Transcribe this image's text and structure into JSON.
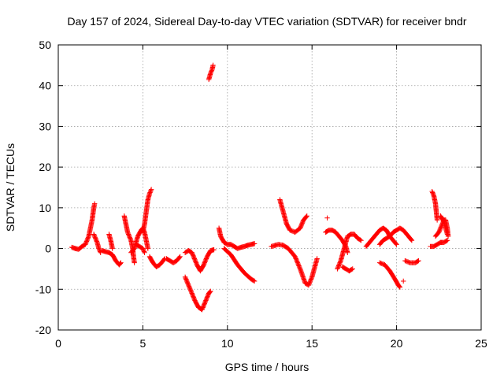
{
  "chart_data": {
    "type": "scatter",
    "title": "Day 157 of 2024, Sidereal Day-to-day VTEC variation (SDTVAR) for receiver bndr",
    "xlabel": "GPS time / hours",
    "ylabel": "SDTVAR / TECUs",
    "xlim": [
      0,
      25
    ],
    "ylim": [
      -20,
      50
    ],
    "xticks": [
      "0",
      "5",
      "10",
      "15",
      "20",
      "25"
    ],
    "yticks": [
      "-20",
      "-10",
      "0",
      "10",
      "20",
      "30",
      "40",
      "50"
    ],
    "grid": true,
    "legend": "none",
    "marker": "plus",
    "color": "#ff0000",
    "series": [
      {
        "name": "SDTVAR",
        "segments": [
          [
            [
              0.8,
              0.3
            ],
            [
              1.0,
              0.0
            ],
            [
              1.2,
              -0.2
            ],
            [
              1.4,
              0.5
            ],
            [
              1.6,
              1.0
            ],
            [
              1.8,
              3.0
            ],
            [
              2.0,
              7.0
            ],
            [
              2.1,
              10.0
            ],
            [
              2.15,
              11.0
            ]
          ],
          [
            [
              2.1,
              3.5
            ],
            [
              2.2,
              2.5
            ],
            [
              2.3,
              1.5
            ],
            [
              2.4,
              0.0
            ],
            [
              2.5,
              -1.0
            ]
          ],
          [
            [
              2.6,
              -0.5
            ],
            [
              2.8,
              -0.8
            ],
            [
              3.0,
              -1.0
            ],
            [
              3.2,
              -1.5
            ],
            [
              3.4,
              -3.0
            ],
            [
              3.6,
              -4.0
            ],
            [
              3.7,
              -3.5
            ]
          ],
          [
            [
              3.0,
              3.5
            ],
            [
              3.1,
              2.0
            ],
            [
              3.2,
              0.0
            ]
          ],
          [
            [
              3.9,
              8.0
            ],
            [
              4.0,
              6.0
            ],
            [
              4.1,
              4.0
            ],
            [
              4.2,
              3.0
            ],
            [
              4.3,
              2.0
            ],
            [
              4.4,
              0.0
            ],
            [
              4.45,
              -2.0
            ],
            [
              4.5,
              -3.5
            ]
          ],
          [
            [
              4.3,
              -1.0
            ],
            [
              4.5,
              0.0
            ],
            [
              4.7,
              3.0
            ],
            [
              4.9,
              4.5
            ],
            [
              5.0,
              5.0
            ],
            [
              5.1,
              4.0
            ],
            [
              5.2,
              2.0
            ],
            [
              5.3,
              0.0
            ]
          ],
          [
            [
              4.6,
              1.0
            ],
            [
              4.8,
              0.5
            ],
            [
              5.0,
              0.0
            ],
            [
              5.1,
              -1.0
            ]
          ],
          [
            [
              5.0,
              4.0
            ],
            [
              5.1,
              6.0
            ],
            [
              5.2,
              9.0
            ],
            [
              5.3,
              12.0
            ],
            [
              5.4,
              13.5
            ],
            [
              5.5,
              14.5
            ]
          ],
          [
            [
              5.4,
              -2.0
            ],
            [
              5.6,
              -3.5
            ],
            [
              5.8,
              -4.5
            ],
            [
              6.0,
              -4.0
            ],
            [
              6.2,
              -3.0
            ],
            [
              6.3,
              -2.5
            ]
          ],
          [
            [
              6.4,
              -2.5
            ],
            [
              6.6,
              -3.0
            ],
            [
              6.8,
              -3.5
            ],
            [
              7.0,
              -3.0
            ],
            [
              7.2,
              -2.0
            ]
          ],
          [
            [
              7.5,
              -1.0
            ],
            [
              7.7,
              -0.5
            ],
            [
              7.9,
              -1.0
            ],
            [
              8.0,
              -2.0
            ],
            [
              8.2,
              -4.0
            ],
            [
              8.4,
              -5.5
            ],
            [
              8.6,
              -4.0
            ],
            [
              8.8,
              -2.0
            ],
            [
              9.0,
              -0.5
            ],
            [
              9.2,
              -0.3
            ]
          ],
          [
            [
              7.5,
              -7.0
            ],
            [
              7.7,
              -9.0
            ],
            [
              7.9,
              -11.0
            ],
            [
              8.1,
              -13.0
            ],
            [
              8.3,
              -14.5
            ],
            [
              8.5,
              -15.0
            ],
            [
              8.7,
              -13.0
            ],
            [
              8.9,
              -11.0
            ],
            [
              9.0,
              -10.5
            ]
          ],
          [
            [
              8.9,
              41.5
            ],
            [
              9.0,
              43.0
            ],
            [
              9.1,
              44.0
            ],
            [
              9.15,
              45.0
            ]
          ],
          [
            [
              9.5,
              5.0
            ],
            [
              9.6,
              3.0
            ],
            [
              9.8,
              1.5
            ],
            [
              10.0,
              1.0
            ],
            [
              10.2,
              1.0
            ],
            [
              10.4,
              0.5
            ],
            [
              10.6,
              0.0
            ],
            [
              10.8,
              0.3
            ],
            [
              11.0,
              0.5
            ],
            [
              11.2,
              0.8
            ],
            [
              11.4,
              1.0
            ],
            [
              11.6,
              1.2
            ]
          ],
          [
            [
              9.8,
              0.0
            ],
            [
              10.2,
              -1.5
            ],
            [
              10.6,
              -4.0
            ],
            [
              11.0,
              -6.0
            ],
            [
              11.4,
              -7.5
            ],
            [
              11.6,
              -8.0
            ]
          ],
          [
            [
              12.6,
              0.5
            ],
            [
              13.0,
              1.0
            ],
            [
              13.3,
              0.8
            ],
            [
              13.6,
              0.0
            ],
            [
              14.0,
              -2.0
            ],
            [
              14.3,
              -5.0
            ],
            [
              14.6,
              -8.5
            ],
            [
              14.8,
              -9.0
            ],
            [
              15.0,
              -7.0
            ],
            [
              15.2,
              -4.0
            ],
            [
              15.3,
              -2.5
            ]
          ],
          [
            [
              13.1,
              12.0
            ],
            [
              13.3,
              9.0
            ],
            [
              13.5,
              6.0
            ],
            [
              13.7,
              4.5
            ],
            [
              14.0,
              4.0
            ],
            [
              14.3,
              5.0
            ],
            [
              14.5,
              7.0
            ],
            [
              14.7,
              8.0
            ]
          ],
          [
            [
              15.9,
              7.5
            ]
          ],
          [
            [
              15.8,
              4.0
            ],
            [
              16.0,
              4.5
            ],
            [
              16.2,
              4.5
            ],
            [
              16.4,
              4.0
            ],
            [
              16.6,
              3.0
            ],
            [
              16.8,
              2.0
            ],
            [
              17.0,
              0.5
            ],
            [
              17.1,
              -1.0
            ]
          ],
          [
            [
              16.5,
              -5.0
            ],
            [
              16.7,
              -3.0
            ],
            [
              16.9,
              0.0
            ],
            [
              17.1,
              3.0
            ],
            [
              17.3,
              3.5
            ],
            [
              17.5,
              3.5
            ],
            [
              17.7,
              2.5
            ],
            [
              17.9,
              2.0
            ]
          ],
          [
            [
              16.8,
              -4.5
            ],
            [
              17.0,
              -5.0
            ],
            [
              17.2,
              -5.5
            ],
            [
              17.4,
              -5.0
            ]
          ],
          [
            [
              18.2,
              0.5
            ],
            [
              18.4,
              1.5
            ],
            [
              18.6,
              2.5
            ],
            [
              18.8,
              3.5
            ],
            [
              19.0,
              4.5
            ],
            [
              19.2,
              5.0
            ],
            [
              19.4,
              4.5
            ],
            [
              19.6,
              3.0
            ],
            [
              19.8,
              2.0
            ],
            [
              20.0,
              1.0
            ]
          ],
          [
            [
              19.0,
              1.0
            ],
            [
              19.2,
              2.0
            ],
            [
              19.4,
              2.5
            ],
            [
              19.6,
              3.0
            ],
            [
              19.8,
              4.0
            ],
            [
              20.0,
              4.5
            ],
            [
              20.2,
              5.0
            ],
            [
              20.4,
              4.5
            ],
            [
              20.6,
              3.5
            ],
            [
              20.8,
              2.5
            ],
            [
              20.9,
              2.0
            ]
          ],
          [
            [
              19.0,
              -3.5
            ],
            [
              19.3,
              -4.0
            ],
            [
              19.6,
              -5.5
            ],
            [
              19.9,
              -7.5
            ],
            [
              20.1,
              -9.0
            ],
            [
              20.2,
              -9.5
            ]
          ],
          [
            [
              20.4,
              -8.0
            ]
          ],
          [
            [
              20.5,
              -3.0
            ],
            [
              20.8,
              -3.5
            ],
            [
              21.1,
              -3.5
            ],
            [
              21.3,
              -3.0
            ]
          ],
          [
            [
              22.0,
              0.5
            ],
            [
              22.2,
              0.5
            ],
            [
              22.4,
              1.0
            ],
            [
              22.6,
              1.5
            ],
            [
              22.8,
              1.5
            ],
            [
              23.0,
              2.0
            ]
          ],
          [
            [
              22.1,
              14.0
            ],
            [
              22.2,
              13.0
            ],
            [
              22.3,
              11.0
            ],
            [
              22.35,
              9.0
            ],
            [
              22.4,
              7.0
            ]
          ],
          [
            [
              22.3,
              3.0
            ],
            [
              22.5,
              4.0
            ],
            [
              22.7,
              6.0
            ],
            [
              22.8,
              7.0
            ],
            [
              22.9,
              7.0
            ],
            [
              23.0,
              5.0
            ],
            [
              23.05,
              3.0
            ]
          ],
          [
            [
              22.6,
              8.0
            ],
            [
              22.8,
              6.5
            ],
            [
              22.9,
              5.0
            ],
            [
              23.0,
              3.5
            ]
          ]
        ]
      }
    ]
  }
}
